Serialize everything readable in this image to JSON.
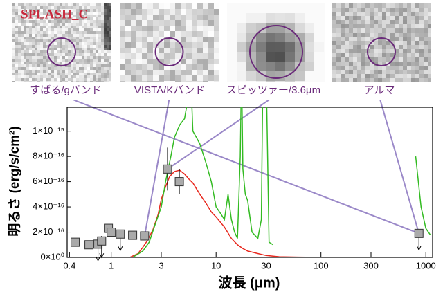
{
  "chart_data": {
    "type": "line",
    "title": "SPLASH_C",
    "panels": [
      "すばる/gバンド",
      "VISTA/Kバンド",
      "スピッツァー/3.6μm",
      "アルマ"
    ],
    "x_label": "波長 (μm)",
    "y_label": "明るさ (erg/s/cm²)",
    "log_x": true,
    "xlim": [
      0.38,
      1160
    ],
    "xticks": [
      0.4,
      1,
      3,
      10,
      30,
      100,
      300,
      1000
    ],
    "ylim": [
      0,
      1.19e-15
    ],
    "yticks": [
      {
        "value": 0,
        "label": "0×10⁰"
      },
      {
        "value": 2e-16,
        "label": "2×10⁻¹⁶"
      },
      {
        "value": 4e-16,
        "label": "4×10⁻¹⁶"
      },
      {
        "value": 6e-16,
        "label": "6×10⁻¹⁶"
      },
      {
        "value": 8e-16,
        "label": "8×10⁻¹⁶"
      },
      {
        "value": 1e-15,
        "label": "1×10⁻¹⁵"
      }
    ],
    "series": [
      {
        "color": "#e8281e",
        "x": [
          1.5,
          1.8,
          2.0,
          2.2,
          2.5,
          2.8,
          3.0,
          3.3,
          3.6,
          4.0,
          4.5,
          5,
          5.5,
          6,
          7,
          8,
          9,
          10,
          12,
          14,
          16,
          18,
          20,
          25,
          30,
          40,
          60,
          100,
          200
        ],
        "values": [
          0,
          3e-17,
          8e-17,
          1.3e-16,
          2.2e-16,
          3.4e-16,
          4.6e-16,
          5.6e-16,
          6.4e-16,
          6.8e-16,
          6.9e-16,
          6.6e-16,
          6.2e-16,
          5.9e-16,
          5e-16,
          4.3e-16,
          3.6e-16,
          3.2e-16,
          2.4e-16,
          1.5e-16,
          1e-16,
          7e-17,
          5e-17,
          3e-17,
          1.5e-17,
          5e-18,
          2e-18,
          0,
          0
        ]
      },
      {
        "color": "#33bb22",
        "x": [
          1.6,
          2,
          2.3,
          2.6,
          3,
          3.3,
          3.7,
          4,
          4.5,
          5,
          5.5,
          5.7,
          6,
          6.5,
          7,
          8,
          9,
          10,
          11,
          12,
          13,
          14,
          15,
          16,
          17,
          17.5,
          18,
          19,
          20,
          22,
          25,
          27,
          28,
          30,
          32,
          35,
          700,
          800,
          900,
          1000,
          1100
        ],
        "values": [
          0,
          5e-17,
          1.2e-16,
          2.5e-16,
          4e-16,
          6e-16,
          8e-16,
          9.5e-16,
          1.05e-15,
          1.1e-15,
          1.3e-15,
          1.5e-15,
          1e-15,
          9.5e-16,
          9e-16,
          7.5e-16,
          6e-16,
          4e-16,
          3.5e-16,
          3e-16,
          5e-16,
          3e-16,
          2e-16,
          1.5e-16,
          8e-16,
          1.5e-15,
          7e-16,
          5e-16,
          4.5e-16,
          2e-16,
          1.5e-16,
          3e-16,
          1.5e-15,
          1.5e-15,
          1.2e-16,
          1e-16,
          null,
          8e-16,
          4e-16,
          2.3e-16,
          1.8e-16
        ]
      }
    ],
    "points": {
      "color": "#aaaaaa",
      "x": [
        0.453,
        0.614,
        0.748,
        0.81,
        0.94,
        1.0,
        1.22,
        1.6,
        2.08,
        3.44,
        4.46,
        859
      ],
      "values": [
        1.2e-16,
        1e-16,
        1.05e-16,
        1.3e-16,
        2.3e-16,
        2e-16,
        1.85e-16,
        1.75e-16,
        1.7e-16,
        7e-16,
        6e-16,
        1.9e-16
      ],
      "errors": [
        2e-17,
        2e-17,
        3e-17,
        4e-17,
        3e-17,
        3e-17,
        3e-17,
        2e-17,
        2e-17,
        1.7e-16,
        1e-16,
        2e-17
      ],
      "upper_limit": [
        false,
        false,
        true,
        true,
        false,
        false,
        true,
        false,
        false,
        false,
        false,
        true
      ]
    }
  }
}
